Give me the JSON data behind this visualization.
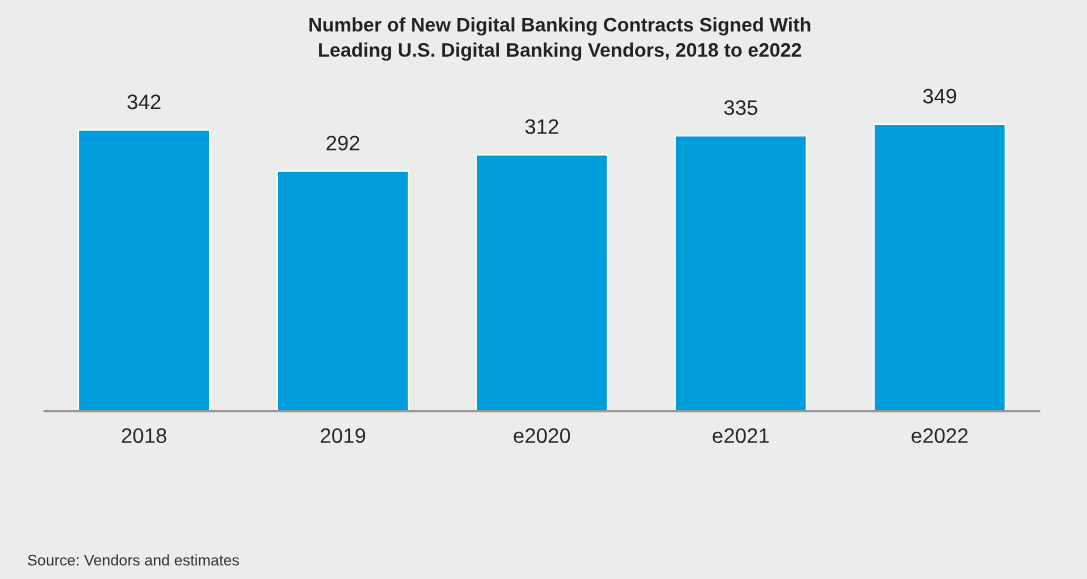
{
  "chart_data": {
    "type": "bar",
    "title": "Number of New Digital Banking Contracts Signed With\nLeading U.S. Digital Banking Vendors, 2018 to e2022",
    "categories": [
      "2018",
      "2019",
      "e2020",
      "e2021",
      "e2022"
    ],
    "values": [
      342,
      292,
      312,
      335,
      349
    ],
    "color": "#009ddc",
    "data_labels": true,
    "grid": false,
    "legend": false,
    "tick_labels": "x",
    "annotations": [
      "Source: Vendors and estimates"
    ]
  }
}
